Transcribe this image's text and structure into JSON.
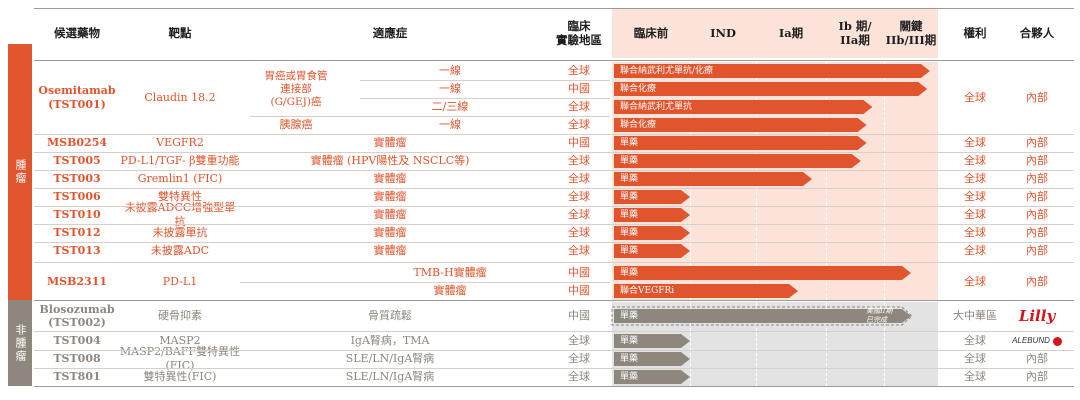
{
  "header": {
    "candidate": "候選藥物",
    "target": "靶點",
    "indication": "適應症",
    "region": "臨床\n實驗地區",
    "preclinical": "臨床前",
    "ind": "IND",
    "phase1a": "Ia期",
    "phase1b2a": "Ib 期/\nIIa期",
    "pivotal": "關鍵\nIIb/III期",
    "rights": "權利",
    "partner": "合夥人"
  },
  "categories": {
    "oncology": "腫瘤",
    "non_oncology": "非腫瘤"
  },
  "colors": {
    "oncology_bar": "#e0552d",
    "non_oncology_bar": "#8d877d",
    "stage_shade": "#fbe3da",
    "lilly_red": "#d5141b"
  },
  "oncology": [
    {
      "candidate": "Osemitamab\n(TST001)",
      "target": "Claudin 18.2",
      "rights": "全球",
      "partner": "內部",
      "rows": [
        {
          "tumor": "胃癌或胃食管\n連接部\n(G/GEJ)癌",
          "line": "一線",
          "region": "全球",
          "bar_label": "聯合納武利尤單抗/化療",
          "stage_reached": 4.85
        },
        {
          "line": "一線",
          "region": "中國",
          "bar_label": "聯合化療",
          "stage_reached": 4.8
        },
        {
          "line": "二/三線",
          "region": "全球",
          "bar_label": "聯合納武利尤單抗",
          "stage_reached": 3.8
        },
        {
          "tumor": "胰腺癌",
          "line": "一線",
          "region": "全球",
          "bar_label": "聯合化療",
          "stage_reached": 3.7
        }
      ]
    },
    {
      "candidate": "MSB0254",
      "target": "VEGFR2",
      "indication": "實體瘤",
      "region": "中國",
      "bar_label": "單藥",
      "stage_reached": 3.7,
      "rights": "全球",
      "partner": "內部"
    },
    {
      "candidate": "TST005",
      "target": "PD-L1/TGF- β雙重功能",
      "indication": "實體瘤 (HPV陽性及 NSCLC等)",
      "region": "全球",
      "bar_label": "單藥",
      "stage_reached": 3.6,
      "rights": "全球",
      "partner": "內部"
    },
    {
      "candidate": "TST003",
      "target": "Gremlin1 (FIC)",
      "indication": "實體瘤",
      "region": "全球",
      "bar_label": "單藥",
      "stage_reached": 2.8,
      "rights": "全球",
      "partner": "內部"
    },
    {
      "candidate": "TST006",
      "target": "雙特異性",
      "indication": "實體瘤",
      "region": "全球",
      "bar_label": "單藥",
      "stage_reached": 1.0,
      "rights": "全球",
      "partner": "內部"
    },
    {
      "candidate": "TST010",
      "target": "未披露ADCC增強型單抗",
      "indication": "實體瘤",
      "region": "全球",
      "bar_label": "單藥",
      "stage_reached": 1.0,
      "rights": "全球",
      "partner": "內部"
    },
    {
      "candidate": "TST012",
      "target": "未披露單抗",
      "indication": "實體瘤",
      "region": "全球",
      "bar_label": "單藥",
      "stage_reached": 1.0,
      "rights": "全球",
      "partner": "內部"
    },
    {
      "candidate": "TST013",
      "target": "未披露ADC",
      "indication": "實體瘤",
      "region": "全球",
      "bar_label": "單藥",
      "stage_reached": 1.0,
      "rights": "全球",
      "partner": "內部"
    },
    {
      "candidate": "MSB2311",
      "target": "PD-L1",
      "rights": "全球",
      "partner": "內部",
      "rows": [
        {
          "line": "TMB-H實體瘤",
          "region": "中國",
          "bar_label": "單藥",
          "stage_reached": 4.5
        },
        {
          "line": "實體瘤",
          "region": "中國",
          "bar_label": "聯合VEGFRi",
          "stage_reached": 2.6
        }
      ]
    }
  ],
  "non_oncology": [
    {
      "candidate": "Blosozumab\n(TST002)",
      "target": "硬骨抑素",
      "indication": "骨質疏鬆",
      "region": "中國",
      "bar_label": "單藥",
      "stage_reached": 4.5,
      "completed_label": "美國II期\n已完成",
      "rights": "大中華區",
      "partner_logo": "Lilly"
    },
    {
      "candidate": "TST004",
      "target": "MASP2",
      "indication": "IgA腎病，TMA",
      "region": "全球",
      "bar_label": "單藥",
      "stage_reached": 1.0,
      "rights": "全球",
      "partner_logo": "ALEBUND"
    },
    {
      "candidate": "TST008",
      "target": "MASP2/BAFF雙特異性(FIC)",
      "indication": "SLE/LN/IgA腎病",
      "region": "全球",
      "bar_label": "單藥",
      "stage_reached": 1.0,
      "rights": "全球",
      "partner": "內部"
    },
    {
      "candidate": "TST801",
      "target": "雙特異性(FIC)",
      "indication": "SLE/LN/IgA腎病",
      "region": "全球",
      "bar_label": "單藥",
      "stage_reached": 1.0,
      "rights": "全球",
      "partner": "內部"
    }
  ]
}
